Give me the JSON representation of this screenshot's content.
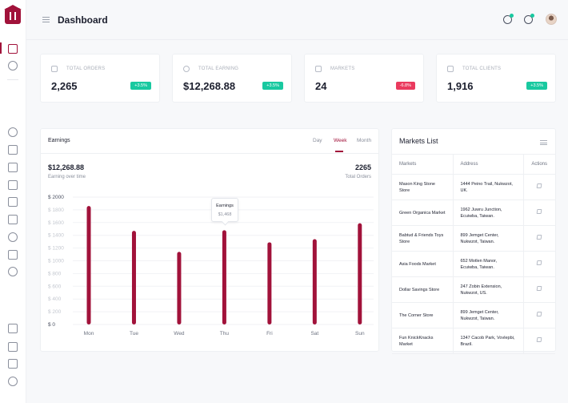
{
  "header": {
    "title": "Dashboard"
  },
  "stats": [
    {
      "label": "TOTAL ORDERS",
      "value": "2,265",
      "change": "+3.5%",
      "trend": "up",
      "icon": "cart-icon"
    },
    {
      "label": "TOTAL EARNING",
      "value": "$12,268.88",
      "change": "+3.5%",
      "trend": "up",
      "icon": "dollar-icon"
    },
    {
      "label": "MARKETS",
      "value": "24",
      "change": "-6.8%",
      "trend": "down",
      "icon": "store-icon"
    },
    {
      "label": "TOTAL CLIENTS",
      "value": "1,916",
      "change": "+3.5%",
      "trend": "up",
      "icon": "client-icon"
    }
  ],
  "earnings": {
    "title": "Earnings",
    "tabs": [
      "Day",
      "Week",
      "Month"
    ],
    "active_tab": "Week",
    "total_earning": "$12,268.88",
    "total_earning_label": "Earning over time",
    "total_orders": "2265",
    "total_orders_label": "Total Orders",
    "tooltip": {
      "title": "Earnings",
      "value": "$1,468"
    }
  },
  "chart_data": {
    "type": "bar",
    "categories": [
      "Mon",
      "Tue",
      "Wed",
      "Thu",
      "Fri",
      "Sat",
      "Sun"
    ],
    "values": [
      1860,
      1470,
      1140,
      1480,
      1290,
      1340,
      1590
    ],
    "ylim": [
      0,
      2000
    ],
    "yticks": [
      0,
      200,
      400,
      600,
      800,
      1000,
      1200,
      1400,
      1600,
      1800,
      2000
    ],
    "ytick_labels": [
      "$ 0",
      "$ 200",
      "$ 400",
      "$ 600",
      "$ 800",
      "$ 1000",
      "$ 1200",
      "$ 1400",
      "$ 1600",
      "$ 1800",
      "$ 2000"
    ],
    "bar_color": "#a1123a",
    "grid": true
  },
  "markets": {
    "title": "Markets List",
    "columns": [
      "Markets",
      "Address",
      "Actions"
    ],
    "rows": [
      {
        "name": "Mason King Stone Store",
        "address": "1444 Peino Trail, Nukwzot, UK."
      },
      {
        "name": "Green Organica Market",
        "address": "1962 Juwru Junction, Ecuiwba, Taiwan."
      },
      {
        "name": "Babtud & Friends Toys Store",
        "address": "899 Jemget Center, Nukwzot, Taiwan."
      },
      {
        "name": "Asia Foods Market",
        "address": "652 Motlen Manor, Ecuiwba, Taiwan."
      },
      {
        "name": "Dollar Savings Store",
        "address": "247 Zobin Extension, Nukwzot, US."
      },
      {
        "name": "The Corner Store",
        "address": "899 Jemget Center, Nukwzot, Taiwan."
      },
      {
        "name": "Fun KnickKnacks Market",
        "address": "1347 Cacob Park, Vovlepbi, Brazil."
      }
    ]
  },
  "colors": {
    "accent": "#a1123a",
    "positive": "#19c9a0",
    "negative": "#ea3a5e"
  }
}
